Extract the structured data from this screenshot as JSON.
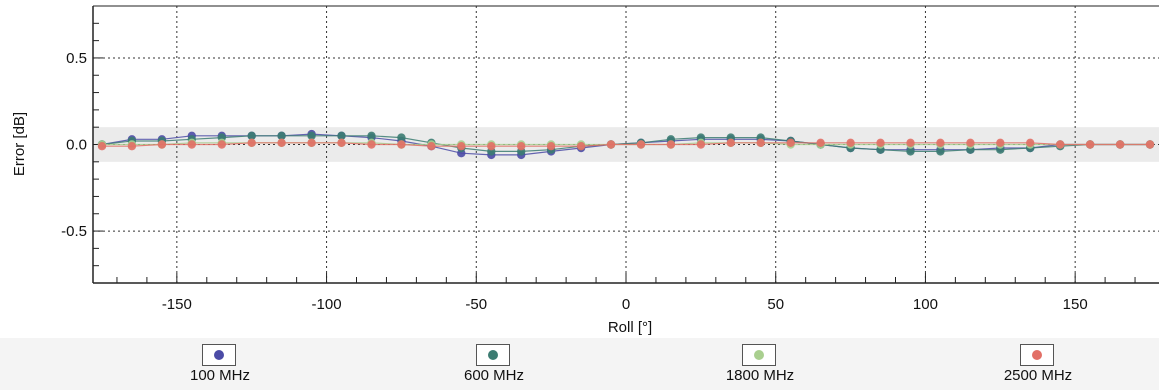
{
  "chart_data": {
    "type": "line",
    "title": "",
    "xlabel": "Roll [°]",
    "ylabel": "Error [dB]",
    "xlim": [
      -178,
      178
    ],
    "ylim": [
      -0.8,
      0.8
    ],
    "grid": true,
    "grid_style": "dotted",
    "reference_band": [
      -0.1,
      0.1
    ],
    "legend_position": "bottom",
    "x_ticks": [
      -150,
      -100,
      -50,
      0,
      50,
      100,
      150
    ],
    "x_tick_labels": [
      "-150",
      "-100",
      "-50",
      "0",
      "50",
      "100",
      "150"
    ],
    "y_ticks": [
      0.5,
      0.0,
      -0.5
    ],
    "y_tick_labels": [
      "0.5",
      "0.0",
      "-0.5"
    ],
    "x": [
      -175,
      -165,
      -155,
      -145,
      -135,
      -125,
      -115,
      -105,
      -95,
      -85,
      -75,
      -65,
      -55,
      -45,
      -35,
      -25,
      -15,
      -5,
      5,
      15,
      25,
      35,
      45,
      55,
      65,
      75,
      85,
      95,
      105,
      115,
      125,
      135,
      145,
      155,
      165,
      175
    ],
    "series": [
      {
        "name": "100 MHz",
        "color": "#4b4ba6",
        "values": [
          0.0,
          0.03,
          0.03,
          0.05,
          0.05,
          0.05,
          0.05,
          0.06,
          0.05,
          0.04,
          0.02,
          -0.01,
          -0.05,
          -0.06,
          -0.06,
          -0.04,
          -0.02,
          0.0,
          0.01,
          0.02,
          0.03,
          0.03,
          0.03,
          0.02,
          0.0,
          -0.02,
          -0.03,
          -0.03,
          -0.03,
          -0.03,
          -0.02,
          -0.02,
          0.0,
          0.0,
          0.0,
          0.0
        ]
      },
      {
        "name": "600 MHz",
        "color": "#3c7c72",
        "values": [
          0.0,
          0.02,
          0.02,
          0.03,
          0.04,
          0.05,
          0.05,
          0.05,
          0.05,
          0.05,
          0.04,
          0.01,
          -0.02,
          -0.04,
          -0.04,
          -0.03,
          -0.01,
          0.0,
          0.01,
          0.03,
          0.04,
          0.04,
          0.04,
          0.02,
          0.0,
          -0.02,
          -0.03,
          -0.04,
          -0.04,
          -0.03,
          -0.03,
          -0.02,
          -0.01,
          0.0,
          0.0,
          0.0
        ]
      },
      {
        "name": "1800 MHz",
        "color": "#a9cf8f",
        "values": [
          0.0,
          0.0,
          0.0,
          0.01,
          0.01,
          0.01,
          0.01,
          0.01,
          0.01,
          0.01,
          0.0,
          0.0,
          0.0,
          0.0,
          0.0,
          0.0,
          0.0,
          0.0,
          0.0,
          0.0,
          0.01,
          0.01,
          0.01,
          0.0,
          0.0,
          0.0,
          0.0,
          0.0,
          0.0,
          0.0,
          0.0,
          0.0,
          0.0,
          0.0,
          0.0,
          0.0
        ]
      },
      {
        "name": "2500 MHz",
        "color": "#e26f66",
        "values": [
          -0.01,
          -0.01,
          0.0,
          0.0,
          0.0,
          0.01,
          0.01,
          0.01,
          0.01,
          0.0,
          0.0,
          -0.01,
          -0.01,
          -0.01,
          -0.01,
          -0.01,
          -0.01,
          0.0,
          0.0,
          0.0,
          0.0,
          0.01,
          0.01,
          0.01,
          0.01,
          0.01,
          0.01,
          0.01,
          0.01,
          0.01,
          0.01,
          0.01,
          0.0,
          0.0,
          0.0,
          0.0
        ]
      }
    ]
  },
  "legend": {
    "items": [
      {
        "label": "100 MHz",
        "color": "#4b4ba6"
      },
      {
        "label": "600 MHz",
        "color": "#3c7c72"
      },
      {
        "label": "1800 MHz",
        "color": "#a9cf8f"
      },
      {
        "label": "2500 MHz",
        "color": "#e26f66"
      }
    ]
  }
}
